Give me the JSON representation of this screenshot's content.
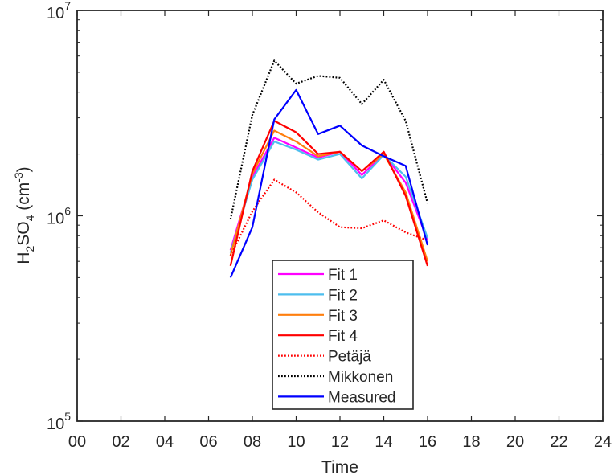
{
  "chart_data": {
    "type": "line",
    "xlabel": "Time",
    "ylabel": {
      "base": "H",
      "sub1": "2",
      "mid": "SO",
      "sub2": "4",
      "unit_open": " (cm",
      "sup": "-3",
      "unit_close": ")"
    },
    "xlim": [
      0,
      24
    ],
    "ylim": [
      100000,
      10000000
    ],
    "yscale": "log",
    "grid": false,
    "legend_position": "bottom-center",
    "x_ticks": [
      {
        "value": 0,
        "label": "00"
      },
      {
        "value": 2,
        "label": "02"
      },
      {
        "value": 4,
        "label": "04"
      },
      {
        "value": 6,
        "label": "06"
      },
      {
        "value": 8,
        "label": "08"
      },
      {
        "value": 10,
        "label": "10"
      },
      {
        "value": 12,
        "label": "12"
      },
      {
        "value": 14,
        "label": "14"
      },
      {
        "value": 16,
        "label": "16"
      },
      {
        "value": 18,
        "label": "18"
      },
      {
        "value": 20,
        "label": "20"
      },
      {
        "value": 22,
        "label": "22"
      },
      {
        "value": 24,
        "label": "24"
      }
    ],
    "y_ticks": [
      {
        "value": 100000,
        "base": "10",
        "exp": "5"
      },
      {
        "value": 1000000,
        "base": "10",
        "exp": "6"
      },
      {
        "value": 10000000,
        "base": "10",
        "exp": "7"
      }
    ],
    "x": [
      7,
      8,
      9,
      10,
      11,
      12,
      13,
      14,
      15,
      16
    ],
    "series": [
      {
        "name": "Fit 1",
        "color": "#ff00ff",
        "style": "solid",
        "values": [
          680000,
          1550000,
          2400000,
          2150000,
          1920000,
          2050000,
          1580000,
          2000000,
          1450000,
          760000
        ]
      },
      {
        "name": "Fit 2",
        "color": "#4dbeee",
        "style": "solid",
        "values": [
          660000,
          1500000,
          2300000,
          2100000,
          1880000,
          2000000,
          1520000,
          1980000,
          1550000,
          780000
        ]
      },
      {
        "name": "Fit 3",
        "color": "#ff7f0e",
        "style": "solid",
        "values": [
          640000,
          1600000,
          2600000,
          2300000,
          1950000,
          2050000,
          1650000,
          2000000,
          1300000,
          600000
        ]
      },
      {
        "name": "Fit 4",
        "color": "#ff0000",
        "style": "solid",
        "values": [
          570000,
          1650000,
          2900000,
          2550000,
          2000000,
          2050000,
          1650000,
          2050000,
          1250000,
          570000
        ]
      },
      {
        "name": "Petäjä",
        "color": "#ff0000",
        "style": "dotted",
        "values": [
          640000,
          1050000,
          1500000,
          1300000,
          1040000,
          880000,
          870000,
          950000,
          830000,
          760000
        ]
      },
      {
        "name": "Mikkonen",
        "color": "#000000",
        "style": "dotted",
        "values": [
          960000,
          3100000,
          5700000,
          4400000,
          4800000,
          4700000,
          3500000,
          4600000,
          2900000,
          1150000
        ]
      },
      {
        "name": "Measured",
        "color": "#0000ff",
        "style": "solid",
        "values": [
          500000,
          880000,
          2950000,
          4100000,
          2500000,
          2750000,
          2200000,
          1950000,
          1750000,
          720000
        ]
      }
    ]
  }
}
